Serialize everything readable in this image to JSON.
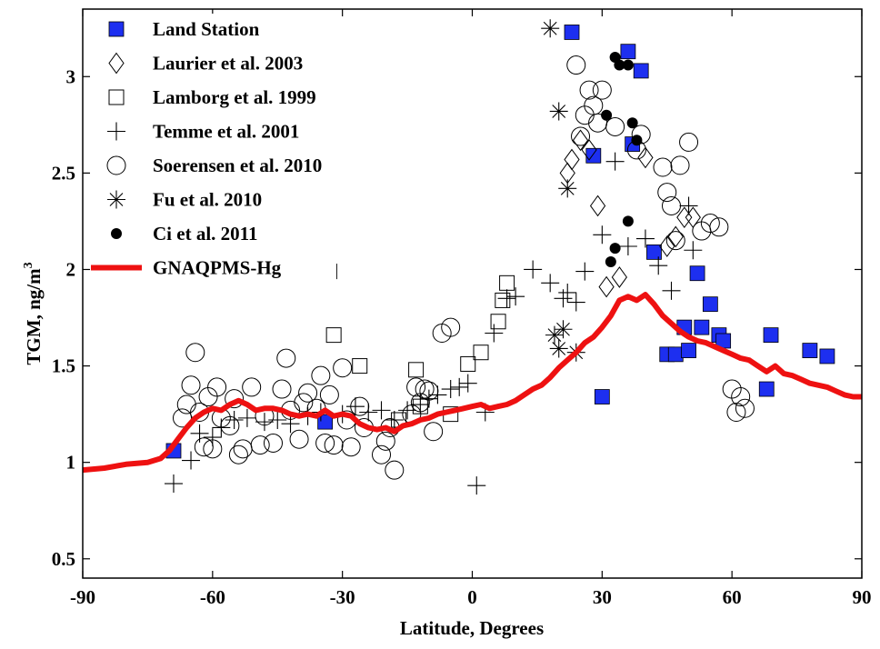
{
  "chart_data": {
    "type": "scatter",
    "title": "",
    "xlabel": "Latitude, Degrees",
    "ylabel_main": "TGM, ng/m",
    "ylabel_sup": "3",
    "xlim": [
      -90,
      90
    ],
    "ylim": [
      0.4,
      3.35
    ],
    "xticks": [
      -90,
      -60,
      -30,
      0,
      30,
      60,
      90
    ],
    "yticks": [
      0.5,
      1,
      1.5,
      2,
      2.5,
      3
    ],
    "grid": false,
    "legend_position": "top-left",
    "series": [
      {
        "name": "Land Station",
        "marker": "square-filled",
        "color": "#1d2ff0",
        "points": [
          [
            -69,
            1.06
          ],
          [
            -34,
            1.21
          ],
          [
            23,
            3.23
          ],
          [
            36,
            3.13
          ],
          [
            39,
            3.03
          ],
          [
            37,
            2.65
          ],
          [
            28,
            2.59
          ],
          [
            42,
            2.09
          ],
          [
            52,
            1.98
          ],
          [
            55,
            1.82
          ],
          [
            49,
            1.7
          ],
          [
            53,
            1.7
          ],
          [
            57,
            1.66
          ],
          [
            58,
            1.63
          ],
          [
            69,
            1.66
          ],
          [
            78,
            1.58
          ],
          [
            82,
            1.55
          ],
          [
            68,
            1.38
          ],
          [
            30,
            1.34
          ],
          [
            45,
            1.56
          ],
          [
            47,
            1.56
          ],
          [
            50,
            1.58
          ]
        ]
      },
      {
        "name": "Laurier et al. 2003",
        "marker": "diamond-open",
        "color": "#000000",
        "points": [
          [
            22,
            2.5
          ],
          [
            23,
            2.57
          ],
          [
            25,
            2.67
          ],
          [
            27,
            2.62
          ],
          [
            29,
            2.33
          ],
          [
            31,
            1.91
          ],
          [
            34,
            1.96
          ],
          [
            40,
            2.58
          ],
          [
            45,
            2.12
          ],
          [
            47,
            2.17
          ],
          [
            49,
            2.27
          ],
          [
            51,
            2.27
          ]
        ]
      },
      {
        "name": "Lamborg et al. 1999",
        "marker": "square-open",
        "color": "#000000",
        "points": [
          [
            -33,
            1.99
          ],
          [
            -32,
            1.66
          ],
          [
            -26,
            1.5
          ],
          [
            -13,
            1.48
          ],
          [
            -5,
            1.25
          ],
          [
            -1,
            1.51
          ],
          [
            2,
            1.57
          ],
          [
            6,
            1.73
          ],
          [
            7,
            1.84
          ],
          [
            8,
            1.93
          ],
          [
            -17,
            1.22
          ],
          [
            -12,
            1.29
          ]
        ]
      },
      {
        "name": "Temme et al. 2001",
        "marker": "plus",
        "color": "#000000",
        "points": [
          [
            -69,
            0.89
          ],
          [
            -65,
            1.01
          ],
          [
            -63,
            1.15
          ],
          [
            -60,
            1.13
          ],
          [
            -58,
            1.18
          ],
          [
            -55,
            1.22
          ],
          [
            -52,
            1.23
          ],
          [
            -48,
            1.21
          ],
          [
            -45,
            1.22
          ],
          [
            -42,
            1.2
          ],
          [
            -38,
            1.24
          ],
          [
            -35,
            1.26
          ],
          [
            -30,
            1.25
          ],
          [
            -27,
            1.29
          ],
          [
            -24,
            1.26
          ],
          [
            -21,
            1.27
          ],
          [
            -18,
            1.22
          ],
          [
            -15,
            1.27
          ],
          [
            -12,
            1.3
          ],
          [
            -10,
            1.33
          ],
          [
            -8,
            1.35
          ],
          [
            -5,
            1.38
          ],
          [
            -3,
            1.39
          ],
          [
            -1,
            1.41
          ],
          [
            1,
            0.88
          ],
          [
            3,
            1.26
          ],
          [
            5,
            1.67
          ],
          [
            8,
            1.85
          ],
          [
            10,
            1.86
          ],
          [
            14,
            2.0
          ],
          [
            18,
            1.93
          ],
          [
            21,
            1.85
          ],
          [
            22,
            1.88
          ],
          [
            24,
            1.83
          ],
          [
            26,
            1.99
          ],
          [
            30,
            2.18
          ],
          [
            33,
            2.56
          ],
          [
            36,
            2.12
          ],
          [
            40,
            2.16
          ],
          [
            43,
            2.02
          ],
          [
            46,
            1.89
          ],
          [
            50,
            2.33
          ],
          [
            51,
            2.1
          ]
        ]
      },
      {
        "name": "Soerensen et al. 2010",
        "marker": "circle-open",
        "color": "#000000",
        "points": [
          [
            -67,
            1.23
          ],
          [
            -66,
            1.3
          ],
          [
            -65,
            1.4
          ],
          [
            -64,
            1.57
          ],
          [
            -63,
            1.26
          ],
          [
            -62,
            1.08
          ],
          [
            -61,
            1.34
          ],
          [
            -60,
            1.07
          ],
          [
            -59,
            1.39
          ],
          [
            -58,
            1.23
          ],
          [
            -56,
            1.19
          ],
          [
            -55,
            1.33
          ],
          [
            -54,
            1.04
          ],
          [
            -53,
            1.07
          ],
          [
            -51,
            1.39
          ],
          [
            -49,
            1.09
          ],
          [
            -48,
            1.24
          ],
          [
            -46,
            1.1
          ],
          [
            -44,
            1.38
          ],
          [
            -43,
            1.54
          ],
          [
            -42,
            1.27
          ],
          [
            -40,
            1.12
          ],
          [
            -39,
            1.31
          ],
          [
            -38,
            1.36
          ],
          [
            -36,
            1.28
          ],
          [
            -35,
            1.45
          ],
          [
            -34,
            1.1
          ],
          [
            -33,
            1.35
          ],
          [
            -32,
            1.09
          ],
          [
            -30,
            1.49
          ],
          [
            -29,
            1.22
          ],
          [
            -28,
            1.08
          ],
          [
            -26,
            1.29
          ],
          [
            -25,
            1.18
          ],
          [
            -21,
            1.04
          ],
          [
            -20,
            1.11
          ],
          [
            -19,
            1.18
          ],
          [
            -18,
            0.96
          ],
          [
            -14,
            1.25
          ],
          [
            -13,
            1.39
          ],
          [
            -12,
            1.31
          ],
          [
            -11,
            1.38
          ],
          [
            -10,
            1.37
          ],
          [
            -9,
            1.16
          ],
          [
            -7,
            1.67
          ],
          [
            -5,
            1.7
          ],
          [
            24,
            3.06
          ],
          [
            25,
            2.69
          ],
          [
            26,
            2.8
          ],
          [
            27,
            2.93
          ],
          [
            28,
            2.85
          ],
          [
            29,
            2.76
          ],
          [
            30,
            2.93
          ],
          [
            33,
            2.74
          ],
          [
            38,
            2.62
          ],
          [
            39,
            2.7
          ],
          [
            44,
            2.53
          ],
          [
            45,
            2.4
          ],
          [
            46,
            2.33
          ],
          [
            47,
            2.15
          ],
          [
            48,
            2.54
          ],
          [
            50,
            2.66
          ],
          [
            53,
            2.2
          ],
          [
            55,
            2.24
          ],
          [
            57,
            2.22
          ],
          [
            60,
            1.38
          ],
          [
            61,
            1.26
          ],
          [
            62,
            1.34
          ],
          [
            63,
            1.28
          ]
        ]
      },
      {
        "name": "Fu et al. 2010",
        "marker": "asterisk",
        "color": "#000000",
        "points": [
          [
            18,
            3.25
          ],
          [
            20,
            2.82
          ],
          [
            22,
            2.42
          ],
          [
            19,
            1.66
          ],
          [
            21,
            1.69
          ],
          [
            20,
            1.59
          ],
          [
            24,
            1.57
          ]
        ]
      },
      {
        "name": "Ci et al. 2011",
        "marker": "circle-filled",
        "color": "#000000",
        "points": [
          [
            31,
            2.8
          ],
          [
            33,
            3.1
          ],
          [
            34,
            3.06
          ],
          [
            36,
            3.06
          ],
          [
            37,
            2.76
          ],
          [
            38,
            2.67
          ],
          [
            36,
            2.25
          ],
          [
            33,
            2.11
          ],
          [
            32,
            2.04
          ]
        ]
      },
      {
        "name": "GNAQPMS-Hg",
        "marker": "line",
        "color": "#ee1111",
        "points": [
          [
            -90,
            0.96
          ],
          [
            -85,
            0.97
          ],
          [
            -80,
            0.99
          ],
          [
            -75,
            1.0
          ],
          [
            -72,
            1.02
          ],
          [
            -70,
            1.06
          ],
          [
            -68,
            1.12
          ],
          [
            -66,
            1.18
          ],
          [
            -64,
            1.23
          ],
          [
            -62,
            1.26
          ],
          [
            -60,
            1.28
          ],
          [
            -58,
            1.27
          ],
          [
            -56,
            1.3
          ],
          [
            -54,
            1.32
          ],
          [
            -52,
            1.3
          ],
          [
            -50,
            1.27
          ],
          [
            -48,
            1.28
          ],
          [
            -46,
            1.28
          ],
          [
            -44,
            1.27
          ],
          [
            -42,
            1.25
          ],
          [
            -40,
            1.24
          ],
          [
            -38,
            1.25
          ],
          [
            -36,
            1.24
          ],
          [
            -34,
            1.27
          ],
          [
            -32,
            1.24
          ],
          [
            -30,
            1.25
          ],
          [
            -28,
            1.24
          ],
          [
            -26,
            1.2
          ],
          [
            -24,
            1.18
          ],
          [
            -22,
            1.17
          ],
          [
            -20,
            1.18
          ],
          [
            -18,
            1.16
          ],
          [
            -16,
            1.19
          ],
          [
            -14,
            1.2
          ],
          [
            -12,
            1.22
          ],
          [
            -10,
            1.23
          ],
          [
            -8,
            1.25
          ],
          [
            -6,
            1.26
          ],
          [
            -4,
            1.27
          ],
          [
            -2,
            1.28
          ],
          [
            0,
            1.29
          ],
          [
            2,
            1.3
          ],
          [
            4,
            1.28
          ],
          [
            6,
            1.29
          ],
          [
            8,
            1.3
          ],
          [
            10,
            1.32
          ],
          [
            12,
            1.35
          ],
          [
            14,
            1.38
          ],
          [
            16,
            1.4
          ],
          [
            18,
            1.44
          ],
          [
            20,
            1.49
          ],
          [
            22,
            1.53
          ],
          [
            24,
            1.57
          ],
          [
            26,
            1.62
          ],
          [
            28,
            1.65
          ],
          [
            30,
            1.7
          ],
          [
            32,
            1.76
          ],
          [
            34,
            1.84
          ],
          [
            36,
            1.86
          ],
          [
            38,
            1.84
          ],
          [
            40,
            1.87
          ],
          [
            42,
            1.82
          ],
          [
            44,
            1.76
          ],
          [
            46,
            1.72
          ],
          [
            48,
            1.68
          ],
          [
            50,
            1.65
          ],
          [
            52,
            1.63
          ],
          [
            54,
            1.62
          ],
          [
            56,
            1.6
          ],
          [
            58,
            1.58
          ],
          [
            60,
            1.56
          ],
          [
            62,
            1.54
          ],
          [
            64,
            1.53
          ],
          [
            66,
            1.5
          ],
          [
            68,
            1.47
          ],
          [
            70,
            1.5
          ],
          [
            72,
            1.46
          ],
          [
            74,
            1.45
          ],
          [
            76,
            1.43
          ],
          [
            78,
            1.41
          ],
          [
            80,
            1.4
          ],
          [
            82,
            1.39
          ],
          [
            84,
            1.37
          ],
          [
            86,
            1.35
          ],
          [
            88,
            1.34
          ],
          [
            90,
            1.34
          ]
        ]
      }
    ]
  }
}
